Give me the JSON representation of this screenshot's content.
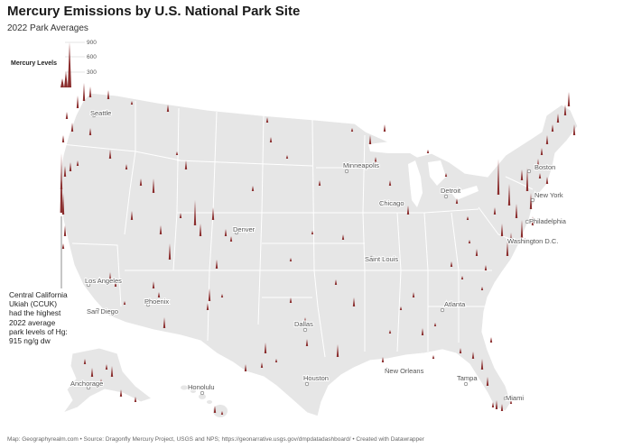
{
  "title": "Mercury Emissions by U.S. National Park Site",
  "subtitle": "2022 Park Averages",
  "legend": {
    "title": "Mercury Levels",
    "ticks": [
      "900",
      "600",
      "300"
    ],
    "marker_color": "#8b2e2e"
  },
  "annotation": "Central California Ukiah (CCUK) had the highest 2022 average park levels of Hg: 915 ng/g dw",
  "footer": "Map: Geographyrealm.com • Source: Dragonfly Mercury Project, USGS and NPS; https://geonarrative.usgs.gov/dmpdatadashboard/ • Created with Datawrapper",
  "cities": [
    "Seattle",
    "Minneapolis",
    "Boston",
    "Detroit",
    "New York",
    "Chicago",
    "Philadelphia",
    "Denver",
    "Washington D.C.",
    "Saint Louis",
    "Los Angeles",
    "San Diego",
    "Phoenix",
    "Atlanta",
    "Dallas",
    "Houston",
    "New Orleans",
    "Tampa",
    "Anchorage",
    "Honolulu",
    "Miami"
  ],
  "colors": {
    "land": "#e6e6e6",
    "border": "#ffffff",
    "spike": "#8b2e2e",
    "spike_highlight": "#c45a5a"
  }
}
